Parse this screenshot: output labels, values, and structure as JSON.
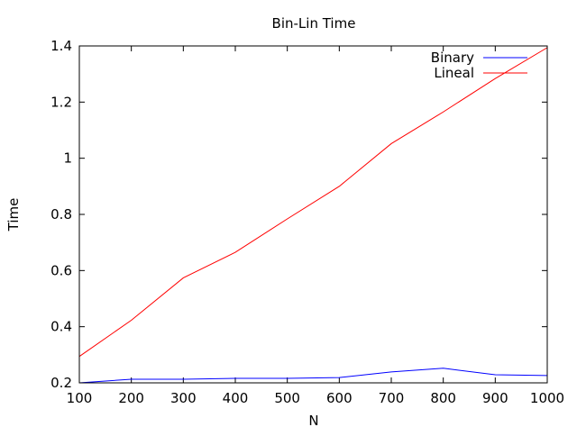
{
  "chart_data": {
    "type": "line",
    "title": "Bin-Lin Time",
    "xlabel": "N",
    "ylabel": "Time",
    "xlim": [
      100,
      1000
    ],
    "ylim": [
      0.2,
      1.4
    ],
    "x": [
      100,
      200,
      300,
      400,
      500,
      600,
      700,
      800,
      900,
      1000
    ],
    "xticks": [
      "100",
      "200",
      "300",
      "400",
      "500",
      "600",
      "700",
      "800",
      "900",
      "1000"
    ],
    "yticks": [
      "0.2",
      "0.4",
      "0.6",
      "0.8",
      "1",
      "1.2",
      "1.4"
    ],
    "grid": false,
    "legend_position": "top-right",
    "series": [
      {
        "name": "Binary",
        "color": "#0000ff",
        "values": [
          0.2,
          0.213,
          0.213,
          0.216,
          0.216,
          0.219,
          0.239,
          0.252,
          0.229,
          0.226
        ]
      },
      {
        "name": "Lineal",
        "color": "#ff0000",
        "values": [
          0.294,
          0.423,
          0.574,
          0.665,
          0.784,
          0.9,
          1.052,
          1.165,
          1.284,
          1.394
        ]
      }
    ]
  }
}
